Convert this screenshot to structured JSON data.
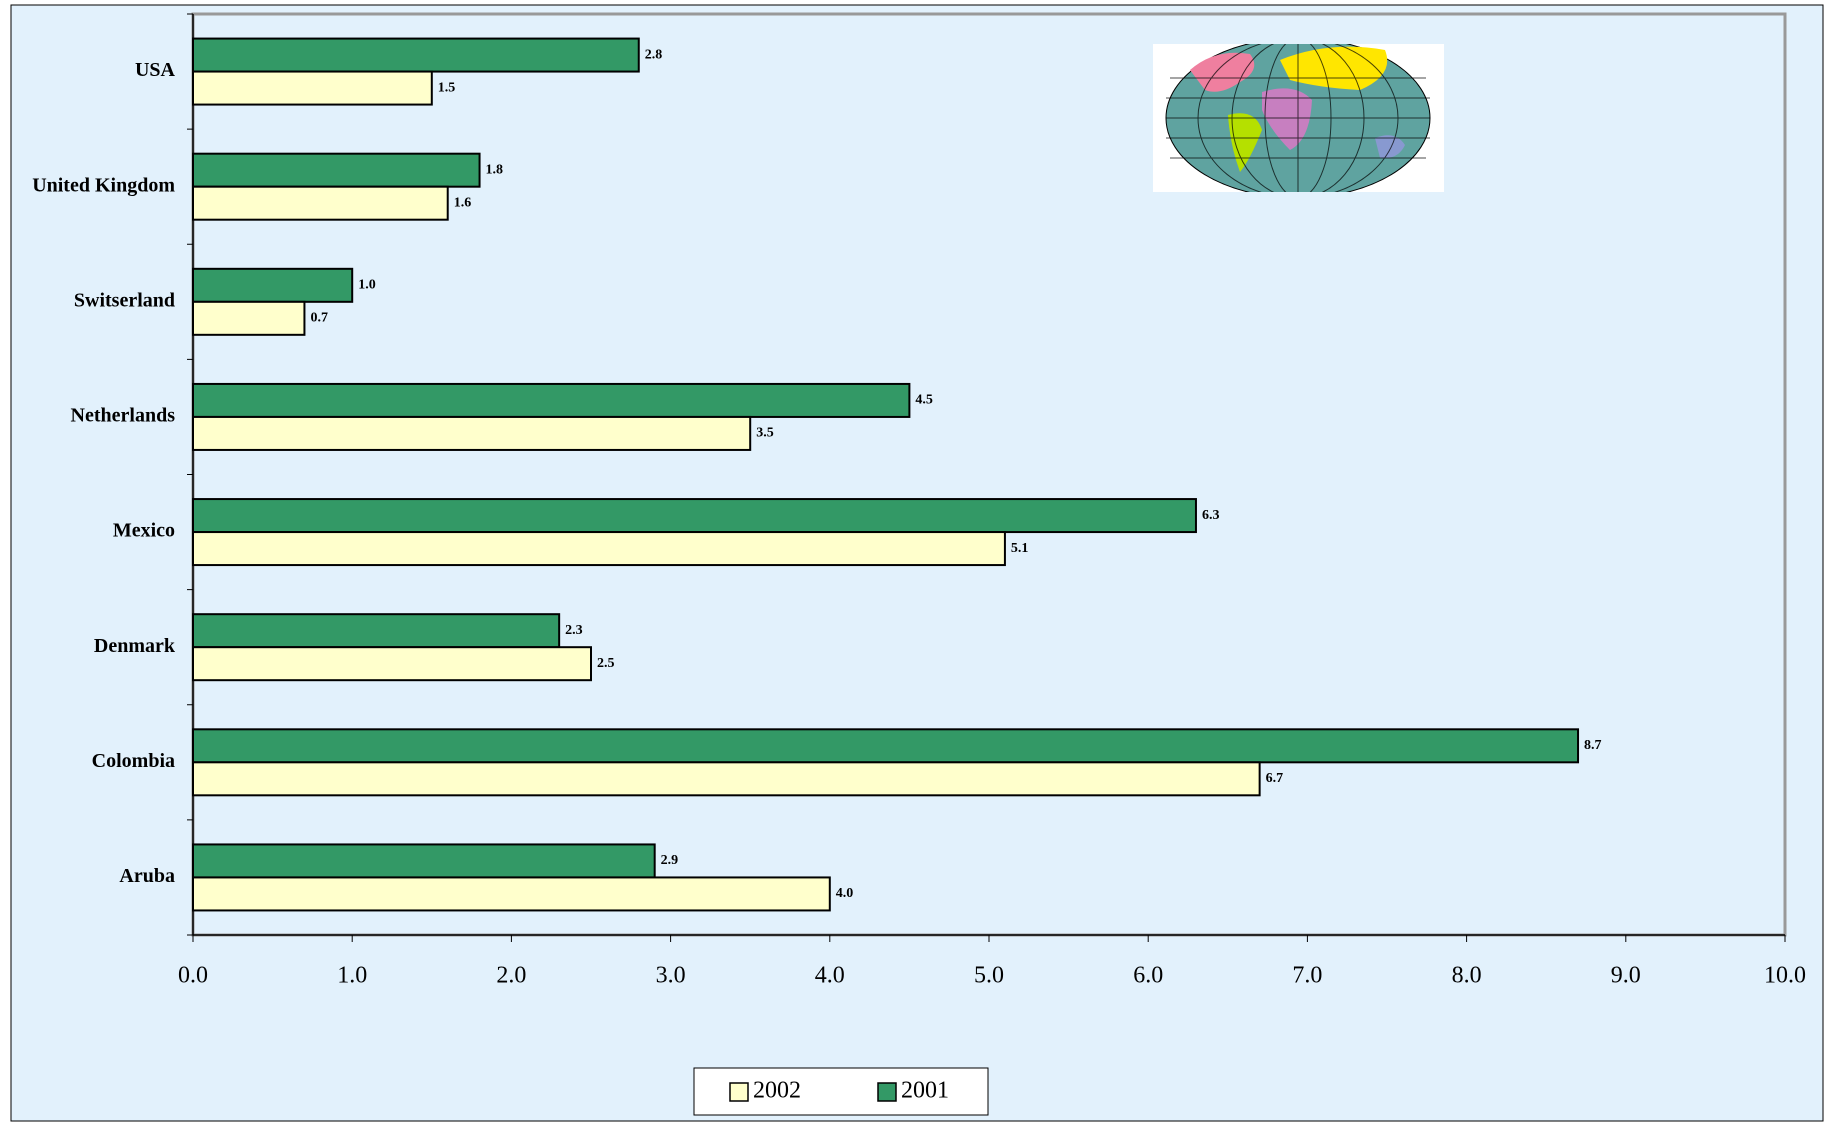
{
  "chart_data": {
    "type": "bar",
    "orientation": "horizontal",
    "categories": [
      "USA",
      "United Kingdom",
      "Switserland",
      "Netherlands",
      "Mexico",
      "Denmark",
      "Colombia",
      "Aruba"
    ],
    "series": [
      {
        "name": "2002",
        "color": "#ffffcc",
        "values": [
          1.5,
          1.6,
          0.7,
          3.5,
          5.1,
          2.5,
          6.7,
          4.0
        ],
        "value_labels": [
          "1.5",
          "1.6",
          "0.7",
          "3.5",
          "5.1",
          "2.5",
          "6.7",
          "4.0"
        ]
      },
      {
        "name": "2001",
        "color": "#339966",
        "values": [
          2.8,
          1.8,
          1.0,
          4.5,
          6.3,
          2.3,
          8.7,
          2.9
        ],
        "value_labels": [
          "2.8",
          "1.8",
          "1.0",
          "4.5",
          "6.3",
          "2.3",
          "8.7",
          "2.9"
        ]
      }
    ],
    "xlim": [
      0,
      10
    ],
    "xticks": [
      {
        "value": 0,
        "label": "0.0"
      },
      {
        "value": 1,
        "label": "1.0"
      },
      {
        "value": 2,
        "label": "2.0"
      },
      {
        "value": 3,
        "label": "3.0"
      },
      {
        "value": 4,
        "label": "4.0"
      },
      {
        "value": 5,
        "label": "5.0"
      },
      {
        "value": 6,
        "label": "6.0"
      },
      {
        "value": 7,
        "label": "7.0"
      },
      {
        "value": 8,
        "label": "8.0"
      },
      {
        "value": 9,
        "label": "9.0"
      },
      {
        "value": 10,
        "label": "10.0"
      }
    ],
    "grid": false,
    "legend": "bottom"
  }
}
